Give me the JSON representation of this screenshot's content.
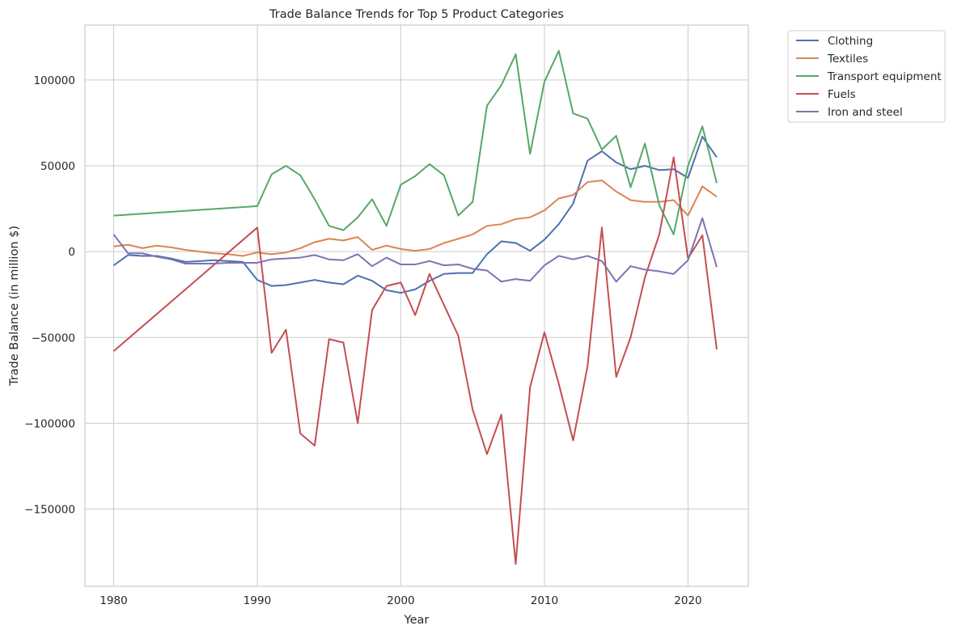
{
  "chart_data": {
    "type": "line",
    "title": "Trade Balance Trends for Top 5 Product Categories",
    "xlabel": "Year",
    "ylabel": "Trade Balance (in million $)",
    "xlim": [
      1978,
      2024.2
    ],
    "ylim": [
      -195000,
      132000
    ],
    "xticks": [
      1980,
      1990,
      2000,
      2010,
      2020
    ],
    "yticks": [
      -150000,
      -100000,
      -50000,
      0,
      50000,
      100000
    ],
    "grid": true,
    "legend_position": "outside upper right",
    "series": [
      {
        "name": "Clothing",
        "color": "#4c72b0",
        "points": [
          [
            1980,
            -8000
          ],
          [
            1981,
            -2000
          ],
          [
            1982,
            -2500
          ],
          [
            1983,
            -2500
          ],
          [
            1984,
            -4000
          ],
          [
            1985,
            -6000
          ],
          [
            1986,
            -5500
          ],
          [
            1987,
            -5000
          ],
          [
            1988,
            -5500
          ],
          [
            1989,
            -6000
          ],
          [
            1990,
            -16500
          ],
          [
            1991,
            -20000
          ],
          [
            1992,
            -19500
          ],
          [
            1993,
            -18000
          ],
          [
            1994,
            -16500
          ],
          [
            1995,
            -18000
          ],
          [
            1996,
            -19000
          ],
          [
            1997,
            -14000
          ],
          [
            1998,
            -17000
          ],
          [
            1999,
            -22500
          ],
          [
            2000,
            -24000
          ],
          [
            2001,
            -22000
          ],
          [
            2002,
            -17000
          ],
          [
            2003,
            -13000
          ],
          [
            2004,
            -12500
          ],
          [
            2005,
            -12500
          ],
          [
            2006,
            -1500
          ],
          [
            2007,
            6000
          ],
          [
            2008,
            5000
          ],
          [
            2009,
            500
          ],
          [
            2010,
            7000
          ],
          [
            2011,
            16000
          ],
          [
            2012,
            28000
          ],
          [
            2013,
            53000
          ],
          [
            2014,
            58500
          ],
          [
            2015,
            52000
          ],
          [
            2016,
            48000
          ],
          [
            2017,
            50000
          ],
          [
            2018,
            47500
          ],
          [
            2019,
            48000
          ],
          [
            2020,
            43000
          ],
          [
            2021,
            67000
          ],
          [
            2022,
            55000
          ]
        ]
      },
      {
        "name": "Textiles",
        "color": "#dd8452",
        "points": [
          [
            1980,
            3000
          ],
          [
            1981,
            4000
          ],
          [
            1982,
            2000
          ],
          [
            1983,
            3500
          ],
          [
            1984,
            2500
          ],
          [
            1985,
            1000
          ],
          [
            1986,
            0
          ],
          [
            1987,
            -1000
          ],
          [
            1988,
            -1500
          ],
          [
            1989,
            -2500
          ],
          [
            1990,
            -500
          ],
          [
            1991,
            -1500
          ],
          [
            1992,
            -500
          ],
          [
            1993,
            2000
          ],
          [
            1994,
            5500
          ],
          [
            1995,
            7500
          ],
          [
            1996,
            6500
          ],
          [
            1997,
            8500
          ],
          [
            1998,
            1000
          ],
          [
            1999,
            3500
          ],
          [
            2000,
            1500
          ],
          [
            2001,
            500
          ],
          [
            2002,
            1500
          ],
          [
            2003,
            5000
          ],
          [
            2004,
            7500
          ],
          [
            2005,
            10000
          ],
          [
            2006,
            15000
          ],
          [
            2007,
            16000
          ],
          [
            2008,
            19000
          ],
          [
            2009,
            20000
          ],
          [
            2010,
            24000
          ],
          [
            2011,
            31000
          ],
          [
            2012,
            33000
          ],
          [
            2013,
            40500
          ],
          [
            2014,
            41500
          ],
          [
            2015,
            35000
          ],
          [
            2016,
            30000
          ],
          [
            2017,
            29000
          ],
          [
            2018,
            29000
          ],
          [
            2019,
            30000
          ],
          [
            2020,
            21000
          ],
          [
            2021,
            38000
          ],
          [
            2022,
            32000
          ]
        ]
      },
      {
        "name": "Transport equipment",
        "color": "#55a868",
        "points": [
          [
            1980,
            21000
          ],
          [
            1990,
            26500
          ],
          [
            1991,
            45000
          ],
          [
            1992,
            50000
          ],
          [
            1993,
            44500
          ],
          [
            1994,
            30500
          ],
          [
            1995,
            15000
          ],
          [
            1996,
            12500
          ],
          [
            1997,
            20000
          ],
          [
            1998,
            30500
          ],
          [
            1999,
            15000
          ],
          [
            2000,
            39000
          ],
          [
            2001,
            44000
          ],
          [
            2002,
            51000
          ],
          [
            2003,
            44500
          ],
          [
            2004,
            21000
          ],
          [
            2005,
            29000
          ],
          [
            2006,
            85000
          ],
          [
            2007,
            97000
          ],
          [
            2008,
            115000
          ],
          [
            2009,
            57000
          ],
          [
            2010,
            99000
          ],
          [
            2011,
            117000
          ],
          [
            2012,
            80500
          ],
          [
            2013,
            77500
          ],
          [
            2014,
            59500
          ],
          [
            2015,
            67500
          ],
          [
            2016,
            37500
          ],
          [
            2017,
            63000
          ],
          [
            2018,
            27000
          ],
          [
            2019,
            10000
          ],
          [
            2020,
            50000
          ],
          [
            2021,
            73000
          ],
          [
            2022,
            40000
          ]
        ]
      },
      {
        "name": "Fuels",
        "color": "#c44e52",
        "points": [
          [
            1980,
            -58000
          ],
          [
            1990,
            14000
          ],
          [
            1991,
            -59000
          ],
          [
            1992,
            -45500
          ],
          [
            1993,
            -106000
          ],
          [
            1994,
            -113000
          ],
          [
            1995,
            -51000
          ],
          [
            1996,
            -53000
          ],
          [
            1997,
            -100000
          ],
          [
            1998,
            -34000
          ],
          [
            1999,
            -20000
          ],
          [
            2000,
            -18000
          ],
          [
            2001,
            -37000
          ],
          [
            2002,
            -13000
          ],
          [
            2003,
            -31000
          ],
          [
            2004,
            -49000
          ],
          [
            2005,
            -92000
          ],
          [
            2006,
            -118000
          ],
          [
            2007,
            -95000
          ],
          [
            2008,
            -182000
          ],
          [
            2009,
            -79000
          ],
          [
            2010,
            -47000
          ],
          [
            2011,
            -77000
          ],
          [
            2012,
            -110000
          ],
          [
            2013,
            -67000
          ],
          [
            2014,
            14000
          ],
          [
            2015,
            -73000
          ],
          [
            2016,
            -50000
          ],
          [
            2017,
            -15000
          ],
          [
            2018,
            10000
          ],
          [
            2019,
            55000
          ],
          [
            2020,
            -4000
          ],
          [
            2021,
            9500
          ],
          [
            2022,
            -57000
          ]
        ]
      },
      {
        "name": "Iron and steel",
        "color": "#8172b3",
        "points": [
          [
            1980,
            10000
          ],
          [
            1981,
            -1000
          ],
          [
            1982,
            -1000
          ],
          [
            1983,
            -3000
          ],
          [
            1984,
            -4500
          ],
          [
            1985,
            -7000
          ],
          [
            1986,
            -7000
          ],
          [
            1987,
            -7000
          ],
          [
            1988,
            -6500
          ],
          [
            1989,
            -6500
          ],
          [
            1990,
            -6500
          ],
          [
            1991,
            -4500
          ],
          [
            1992,
            -4000
          ],
          [
            1993,
            -3500
          ],
          [
            1994,
            -2000
          ],
          [
            1995,
            -4500
          ],
          [
            1996,
            -5000
          ],
          [
            1997,
            -1500
          ],
          [
            1998,
            -8500
          ],
          [
            1999,
            -3500
          ],
          [
            2000,
            -7500
          ],
          [
            2001,
            -7500
          ],
          [
            2002,
            -5500
          ],
          [
            2003,
            -8000
          ],
          [
            2004,
            -7500
          ],
          [
            2005,
            -10000
          ],
          [
            2006,
            -11000
          ],
          [
            2007,
            -17500
          ],
          [
            2008,
            -16000
          ],
          [
            2009,
            -17000
          ],
          [
            2010,
            -8000
          ],
          [
            2011,
            -2500
          ],
          [
            2012,
            -4500
          ],
          [
            2013,
            -2500
          ],
          [
            2014,
            -5500
          ],
          [
            2015,
            -17500
          ],
          [
            2016,
            -8500
          ],
          [
            2017,
            -10500
          ],
          [
            2018,
            -11500
          ],
          [
            2019,
            -13000
          ],
          [
            2020,
            -5000
          ],
          [
            2021,
            19500
          ],
          [
            2022,
            -9000
          ]
        ]
      }
    ]
  }
}
